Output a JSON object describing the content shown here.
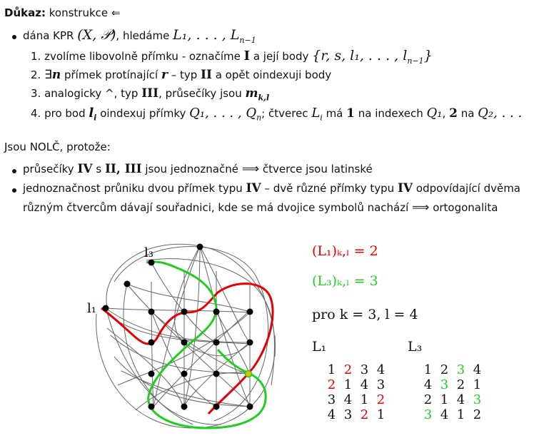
{
  "header": {
    "label": "Důkaz:",
    "text": "konstrukce ⇐"
  },
  "bullet1": {
    "prefix": "dána KPR ",
    "kpr": "(X, 𝒫)",
    "mid": ", hledáme ",
    "L1": "L₁, . . . , L",
    "Lsub": "n−1"
  },
  "steps": [
    {
      "num": "1.",
      "a": "zvolíme libovolně přímku - označíme ",
      "b": "I",
      "c": " a její body ",
      "d": "{r, s, l₁, . . . , l",
      "dsub": "n−1",
      "e": "}"
    },
    {
      "num": "2.",
      "a": "∃",
      "b": "n",
      "c": " přímek protínající ",
      "d": "r",
      "e": " – typ ",
      "f": "II",
      "g": " a opět oindexuji body"
    },
    {
      "num": "3.",
      "a": "analogicky ^, typ ",
      "b": "III",
      "c": ", průsečíky jsou ",
      "d": "m",
      "dsub": "k,l"
    },
    {
      "num": "4.",
      "a": "pro bod ",
      "b": "l",
      "bsub": "i",
      "c": " oindexuj přímky ",
      "d": "Q₁, . . . , Q",
      "dsub": "n",
      "e": "; čtverec ",
      "f": "L",
      "fsub": "i",
      "g": " má ",
      "h": "1",
      "i": " na indexech ",
      "j": "Q₁",
      "k": ", ",
      "l": "2",
      "m": " na ",
      "n": "Q₂, . . ."
    }
  ],
  "nolc": "Jsou NOLČ, protože:",
  "reasons": {
    "r1": {
      "a": "průsečíky ",
      "b": "IV",
      "c": " s ",
      "d": "II, III",
      "e": " jsou jednoznačné ",
      "f": "⟹",
      "g": " čtverce jsou latinské"
    },
    "r2": {
      "a": "jednoznačnost průniku dvou přímek typu ",
      "b": "IV",
      "c": " – dvě různé přímky typu ",
      "d": "IV",
      "e": " odpovídající dvěma"
    },
    "r2b": {
      "a": "různým čtvercům dávají souřadnici, kde se má dvojice symbolů nachází ",
      "b": "⟹",
      "c": " ortogonalita"
    }
  },
  "diagram": {
    "label_l3": "l₃",
    "label_l1": "l₁",
    "colors": {
      "red": "#e00000",
      "green": "#22cc22",
      "curve": "#666666",
      "point": "#000000"
    }
  },
  "equations": {
    "e1": "(L₁)ₖ,ₗ = 2",
    "e2": "(L₃)ₖ,ₗ = 3",
    "e3": "pro k = 3, l = 4"
  },
  "squares": {
    "L1": {
      "title": "L₁",
      "rows": [
        [
          "1",
          "2",
          "3",
          "4"
        ],
        [
          "2",
          "1",
          "4",
          "3"
        ],
        [
          "3",
          "4",
          "1",
          "2"
        ],
        [
          "4",
          "3",
          "2",
          "1"
        ]
      ],
      "highlight": "red",
      "marked": [
        [
          0,
          1
        ],
        [
          1,
          0
        ],
        [
          2,
          3
        ],
        [
          3,
          2
        ]
      ]
    },
    "L3": {
      "title": "L₃",
      "rows": [
        [
          "1",
          "2",
          "3",
          "4"
        ],
        [
          "4",
          "3",
          "2",
          "1"
        ],
        [
          "2",
          "1",
          "4",
          "3"
        ],
        [
          "3",
          "4",
          "1",
          "2"
        ]
      ],
      "highlight": "green",
      "marked": [
        [
          0,
          2
        ],
        [
          1,
          1
        ],
        [
          2,
          3
        ],
        [
          3,
          0
        ]
      ]
    }
  }
}
